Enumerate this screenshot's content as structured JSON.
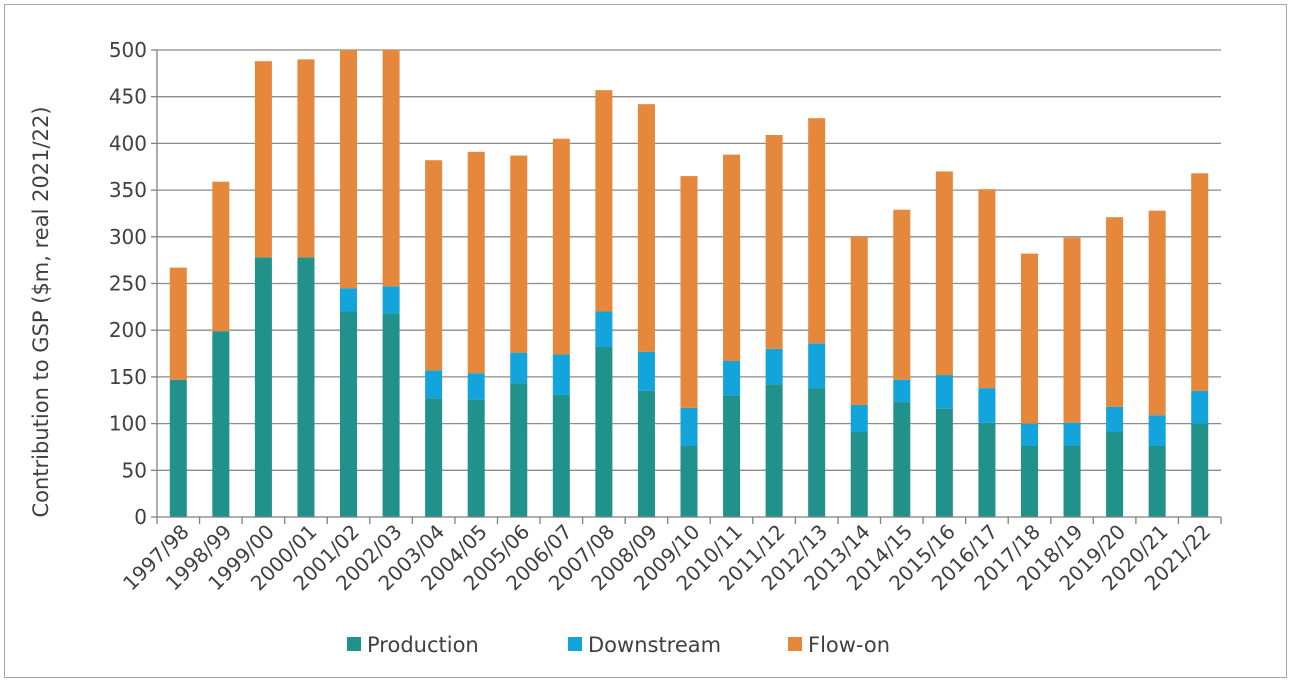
{
  "chart_data": {
    "type": "bar",
    "stacked": true,
    "ylabel": "Contribution to GSP ($m,  real 2021/22)",
    "ylim": [
      0,
      500
    ],
    "yticks": [
      0,
      50,
      100,
      150,
      200,
      250,
      300,
      350,
      400,
      450,
      500
    ],
    "grid": true,
    "legend_position": "bottom",
    "categories": [
      "1997/98",
      "1998/99",
      "1999/00",
      "2000/01",
      "2001/02",
      "2002/03",
      "2003/04",
      "2004/05",
      "2005/06",
      "2006/07",
      "2007/08",
      "2008/09",
      "2009/10",
      "2010/11",
      "2011/12",
      "2012/13",
      "2013/14",
      "2014/15",
      "2015/16",
      "2016/17",
      "2017/18",
      "2018/19",
      "2019/20",
      "2020/21",
      "2021/22"
    ],
    "series": [
      {
        "name": "Production",
        "color": "#21918c",
        "values": [
          147,
          199,
          278,
          278,
          220,
          218,
          127,
          126,
          143,
          131,
          182,
          135,
          76,
          130,
          142,
          138,
          91,
          123,
          116,
          101,
          76,
          76,
          91,
          76,
          100
        ]
      },
      {
        "name": "Downstream",
        "color": "#14a4dc",
        "values": [
          0,
          0,
          0,
          0,
          25,
          29,
          30,
          28,
          33,
          43,
          38,
          42,
          41,
          37,
          38,
          48,
          29,
          24,
          36,
          37,
          24,
          25,
          27,
          33,
          35
        ]
      },
      {
        "name": "Flow-on",
        "color": "#e5883b",
        "values": [
          120,
          160,
          210,
          212,
          255,
          253,
          225,
          237,
          211,
          231,
          237,
          265,
          248,
          221,
          229,
          241,
          180,
          182,
          218,
          213,
          182,
          198,
          203,
          219,
          233
        ]
      }
    ]
  }
}
